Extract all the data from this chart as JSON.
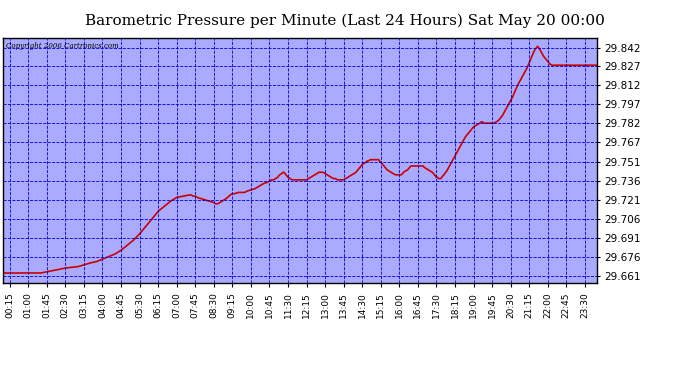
{
  "title": "Barometric Pressure per Minute (Last 24 Hours) Sat May 20 00:00",
  "copyright": "Copyright 2006 Cartronics.com",
  "background_color": "#ffffff",
  "plot_background": "#aaaaff",
  "line_color": "#cc0000",
  "grid_color": "#0000cc",
  "text_color": "#000000",
  "title_fontsize": 11,
  "ylabel_values": [
    29.661,
    29.676,
    29.691,
    29.706,
    29.721,
    29.736,
    29.751,
    29.767,
    29.782,
    29.797,
    29.812,
    29.827,
    29.842
  ],
  "ylim": [
    29.655,
    29.85
  ],
  "x_tick_labels": [
    "00:15",
    "01:00",
    "01:45",
    "02:30",
    "03:15",
    "04:00",
    "04:45",
    "05:30",
    "06:15",
    "07:00",
    "07:45",
    "08:30",
    "09:15",
    "10:00",
    "10:45",
    "11:30",
    "12:15",
    "13:00",
    "13:45",
    "14:30",
    "15:15",
    "16:00",
    "16:45",
    "17:30",
    "18:15",
    "19:00",
    "19:45",
    "20:30",
    "21:15",
    "22:00",
    "22:45",
    "23:30"
  ],
  "line_width": 1.2,
  "waypoints": [
    [
      0,
      29.663
    ],
    [
      45,
      29.663
    ],
    [
      75,
      29.663
    ],
    [
      90,
      29.663
    ],
    [
      105,
      29.664
    ],
    [
      120,
      29.665
    ],
    [
      150,
      29.667
    ],
    [
      180,
      29.668
    ],
    [
      200,
      29.67
    ],
    [
      210,
      29.671
    ],
    [
      225,
      29.672
    ],
    [
      240,
      29.674
    ],
    [
      255,
      29.676
    ],
    [
      270,
      29.678
    ],
    [
      285,
      29.681
    ],
    [
      300,
      29.685
    ],
    [
      315,
      29.689
    ],
    [
      330,
      29.694
    ],
    [
      345,
      29.7
    ],
    [
      360,
      29.706
    ],
    [
      375,
      29.712
    ],
    [
      390,
      29.716
    ],
    [
      405,
      29.72
    ],
    [
      415,
      29.722
    ],
    [
      420,
      29.723
    ],
    [
      435,
      29.724
    ],
    [
      450,
      29.725
    ],
    [
      455,
      29.725
    ],
    [
      460,
      29.724
    ],
    [
      465,
      29.724
    ],
    [
      470,
      29.723
    ],
    [
      480,
      29.722
    ],
    [
      490,
      29.721
    ],
    [
      500,
      29.72
    ],
    [
      510,
      29.719
    ],
    [
      515,
      29.718
    ],
    [
      520,
      29.718
    ],
    [
      525,
      29.719
    ],
    [
      530,
      29.72
    ],
    [
      540,
      29.722
    ],
    [
      550,
      29.725
    ],
    [
      555,
      29.726
    ],
    [
      560,
      29.726
    ],
    [
      570,
      29.727
    ],
    [
      575,
      29.727
    ],
    [
      580,
      29.727
    ],
    [
      585,
      29.727
    ],
    [
      590,
      29.728
    ],
    [
      600,
      29.729
    ],
    [
      610,
      29.73
    ],
    [
      615,
      29.731
    ],
    [
      620,
      29.732
    ],
    [
      625,
      29.733
    ],
    [
      630,
      29.734
    ],
    [
      640,
      29.735
    ],
    [
      645,
      29.736
    ],
    [
      650,
      29.737
    ],
    [
      655,
      29.737
    ],
    [
      660,
      29.738
    ],
    [
      665,
      29.739
    ],
    [
      667,
      29.74
    ],
    [
      670,
      29.741
    ],
    [
      675,
      29.742
    ],
    [
      678,
      29.743
    ],
    [
      680,
      29.743
    ],
    [
      683,
      29.742
    ],
    [
      685,
      29.741
    ],
    [
      688,
      29.74
    ],
    [
      690,
      29.739
    ],
    [
      695,
      29.738
    ],
    [
      700,
      29.737
    ],
    [
      705,
      29.737
    ],
    [
      710,
      29.737
    ],
    [
      715,
      29.737
    ],
    [
      720,
      29.737
    ],
    [
      725,
      29.737
    ],
    [
      730,
      29.737
    ],
    [
      735,
      29.737
    ],
    [
      740,
      29.738
    ],
    [
      745,
      29.739
    ],
    [
      750,
      29.74
    ],
    [
      755,
      29.741
    ],
    [
      760,
      29.742
    ],
    [
      765,
      29.743
    ],
    [
      770,
      29.743
    ],
    [
      775,
      29.743
    ],
    [
      780,
      29.742
    ],
    [
      785,
      29.741
    ],
    [
      790,
      29.74
    ],
    [
      795,
      29.739
    ],
    [
      800,
      29.738
    ],
    [
      805,
      29.738
    ],
    [
      810,
      29.737
    ],
    [
      815,
      29.737
    ],
    [
      820,
      29.737
    ],
    [
      825,
      29.737
    ],
    [
      830,
      29.738
    ],
    [
      835,
      29.739
    ],
    [
      840,
      29.74
    ],
    [
      845,
      29.741
    ],
    [
      850,
      29.742
    ],
    [
      855,
      29.743
    ],
    [
      857,
      29.744
    ],
    [
      860,
      29.745
    ],
    [
      862,
      29.746
    ],
    [
      865,
      29.747
    ],
    [
      867,
      29.748
    ],
    [
      870,
      29.749
    ],
    [
      873,
      29.75
    ],
    [
      875,
      29.75
    ],
    [
      878,
      29.751
    ],
    [
      880,
      29.751
    ],
    [
      882,
      29.752
    ],
    [
      885,
      29.752
    ],
    [
      890,
      29.753
    ],
    [
      895,
      29.753
    ],
    [
      900,
      29.753
    ],
    [
      905,
      29.753
    ],
    [
      908,
      29.753
    ],
    [
      910,
      29.753
    ],
    [
      912,
      29.752
    ],
    [
      915,
      29.751
    ],
    [
      918,
      29.75
    ],
    [
      920,
      29.749
    ],
    [
      923,
      29.748
    ],
    [
      925,
      29.747
    ],
    [
      928,
      29.746
    ],
    [
      930,
      29.745
    ],
    [
      935,
      29.744
    ],
    [
      940,
      29.743
    ],
    [
      945,
      29.742
    ],
    [
      950,
      29.741
    ],
    [
      955,
      29.741
    ],
    [
      960,
      29.741
    ],
    [
      965,
      29.741
    ],
    [
      968,
      29.742
    ],
    [
      970,
      29.743
    ],
    [
      975,
      29.744
    ],
    [
      980,
      29.745
    ],
    [
      983,
      29.746
    ],
    [
      985,
      29.747
    ],
    [
      988,
      29.748
    ],
    [
      990,
      29.748
    ],
    [
      992,
      29.748
    ],
    [
      995,
      29.748
    ],
    [
      1000,
      29.748
    ],
    [
      1005,
      29.748
    ],
    [
      1010,
      29.748
    ],
    [
      1015,
      29.748
    ],
    [
      1018,
      29.748
    ],
    [
      1020,
      29.747
    ],
    [
      1025,
      29.746
    ],
    [
      1030,
      29.745
    ],
    [
      1035,
      29.744
    ],
    [
      1040,
      29.743
    ],
    [
      1043,
      29.742
    ],
    [
      1045,
      29.741
    ],
    [
      1048,
      29.74
    ],
    [
      1050,
      29.739
    ],
    [
      1053,
      29.739
    ],
    [
      1055,
      29.738
    ],
    [
      1058,
      29.738
    ],
    [
      1060,
      29.738
    ],
    [
      1063,
      29.739
    ],
    [
      1065,
      29.74
    ],
    [
      1068,
      29.741
    ],
    [
      1070,
      29.742
    ],
    [
      1075,
      29.744
    ],
    [
      1080,
      29.747
    ],
    [
      1085,
      29.75
    ],
    [
      1090,
      29.753
    ],
    [
      1095,
      29.756
    ],
    [
      1100,
      29.759
    ],
    [
      1105,
      29.762
    ],
    [
      1110,
      29.765
    ],
    [
      1115,
      29.768
    ],
    [
      1120,
      29.771
    ],
    [
      1125,
      29.773
    ],
    [
      1130,
      29.775
    ],
    [
      1135,
      29.777
    ],
    [
      1140,
      29.779
    ],
    [
      1145,
      29.78
    ],
    [
      1150,
      29.781
    ],
    [
      1155,
      29.782
    ],
    [
      1158,
      29.783
    ],
    [
      1160,
      29.783
    ],
    [
      1162,
      29.783
    ],
    [
      1165,
      29.782
    ],
    [
      1168,
      29.782
    ],
    [
      1170,
      29.782
    ],
    [
      1175,
      29.782
    ],
    [
      1180,
      29.782
    ],
    [
      1185,
      29.782
    ],
    [
      1190,
      29.782
    ],
    [
      1195,
      29.783
    ],
    [
      1200,
      29.784
    ],
    [
      1205,
      29.786
    ],
    [
      1210,
      29.788
    ],
    [
      1215,
      29.791
    ],
    [
      1220,
      29.794
    ],
    [
      1225,
      29.797
    ],
    [
      1230,
      29.8
    ],
    [
      1235,
      29.803
    ],
    [
      1240,
      29.807
    ],
    [
      1245,
      29.811
    ],
    [
      1250,
      29.814
    ],
    [
      1255,
      29.817
    ],
    [
      1260,
      29.82
    ],
    [
      1265,
      29.823
    ],
    [
      1270,
      29.826
    ],
    [
      1275,
      29.83
    ],
    [
      1280,
      29.834
    ],
    [
      1285,
      29.838
    ],
    [
      1290,
      29.841
    ],
    [
      1293,
      29.842
    ],
    [
      1295,
      29.843
    ],
    [
      1298,
      29.842
    ],
    [
      1300,
      29.841
    ],
    [
      1305,
      29.838
    ],
    [
      1310,
      29.835
    ],
    [
      1315,
      29.833
    ],
    [
      1320,
      29.831
    ],
    [
      1325,
      29.829
    ],
    [
      1330,
      29.828
    ],
    [
      1335,
      29.828
    ],
    [
      1340,
      29.828
    ],
    [
      1345,
      29.828
    ],
    [
      1350,
      29.828
    ],
    [
      1360,
      29.828
    ],
    [
      1370,
      29.828
    ],
    [
      1380,
      29.828
    ],
    [
      1390,
      29.828
    ],
    [
      1400,
      29.828
    ],
    [
      1410,
      29.828
    ],
    [
      1420,
      29.828
    ],
    [
      1430,
      29.828
    ],
    [
      1439,
      29.828
    ]
  ]
}
